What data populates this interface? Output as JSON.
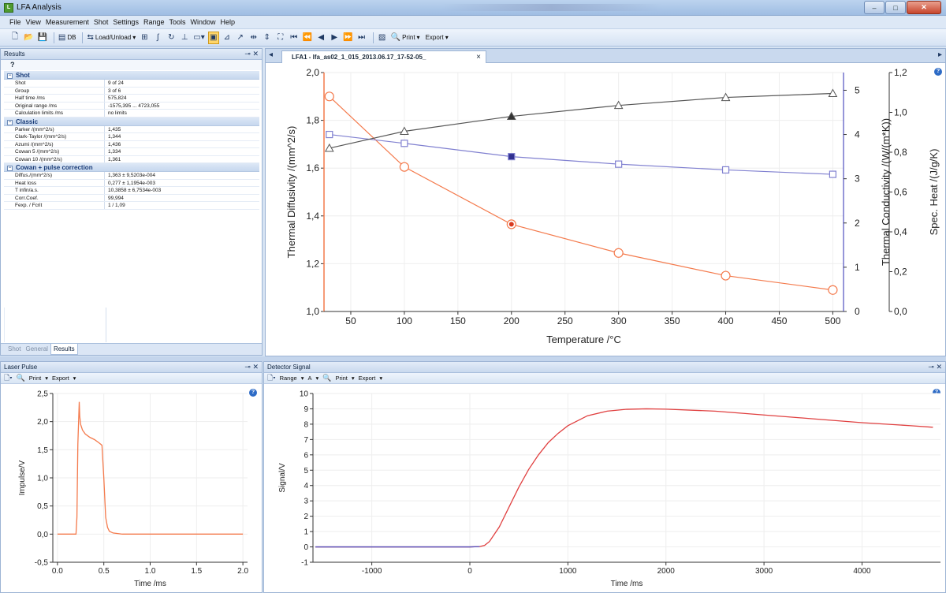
{
  "window": {
    "title": "LFA Analysis",
    "minimize": "–",
    "maximize": "□",
    "close": "✕"
  },
  "menu": [
    "File",
    "View",
    "Measurement",
    "Shot",
    "Settings",
    "Range",
    "Tools",
    "Window",
    "Help"
  ],
  "toolbar": {
    "db_label": "DB",
    "load_label": "Load/Unload",
    "print_label": "Print",
    "export_label": "Export"
  },
  "results_panel": {
    "title": "Results",
    "help_glyph": "?",
    "sections": [
      {
        "name": "Shot",
        "rows": [
          {
            "k": "Shot",
            "v": "9 of 24"
          },
          {
            "k": "Group",
            "v": "3 of 6"
          },
          {
            "k": "Half time /ms",
            "v": "575,824"
          },
          {
            "k": "Original range /ms",
            "v": "-1575,395 ... 4723,055"
          },
          {
            "k": "Calculation limits /ms",
            "v": "no limits"
          }
        ]
      },
      {
        "name": "Classic",
        "rows": [
          {
            "k": "Parker /(mm^2/s)",
            "v": "1,435"
          },
          {
            "k": "Clark-Taylor /(mm^2/s)",
            "v": "1,344"
          },
          {
            "k": "Azumi /(mm^2/s)",
            "v": "1,436"
          },
          {
            "k": "Cowan 5 /(mm^2/s)",
            "v": "1,334"
          },
          {
            "k": "Cowan 10 /(mm^2/s)",
            "v": "1,361"
          }
        ]
      },
      {
        "name": "Cowan + pulse correction",
        "rows": [
          {
            "k": "Diffus./(mm^2/s)",
            "v": "1,363 ± 9,5203e-004"
          },
          {
            "k": "Heat loss",
            "v": "0,277 ± 1,1954e-003"
          },
          {
            "k": "T infin/a.s.",
            "v": "10,3858 ± 6,7534e-003"
          },
          {
            "k": "Corr.Coef.",
            "v": "99,994"
          },
          {
            "k": "Fexp. / Fcrit",
            "v": "1 / 1,09"
          }
        ]
      }
    ],
    "tabs": [
      "Shot",
      "General",
      "Results"
    ],
    "active_tab": "Results"
  },
  "doc_tab": {
    "label": "LFA1 - lfa_as02_1_015_2013.06.17_17-52-05_",
    "close": "×"
  },
  "chart_data": [
    {
      "type": "line",
      "x": [
        30,
        100,
        200,
        300,
        400,
        500
      ],
      "xlabel": "Temperature /°C",
      "xlim": [
        25,
        510
      ],
      "xticks": [
        "50",
        "100",
        "150",
        "200",
        "250",
        "300",
        "350",
        "400",
        "450",
        "500"
      ],
      "axes": {
        "left": {
          "label": "Thermal Diffusivity /(mm^2/s)",
          "range": [
            1.0,
            2.0
          ],
          "ticks": [
            "1,0",
            "1,2",
            "1,4",
            "1,6",
            "1,8",
            "2,0"
          ]
        },
        "right1": {
          "label": "Thermal Conductivity /(W/(m*K))",
          "range": [
            0,
            5.4
          ],
          "ticks": [
            "0",
            "1",
            "2",
            "3",
            "4",
            "5"
          ]
        },
        "right2": {
          "label": "Spec. Heat /(J/g/K)",
          "range": [
            0,
            1.2
          ],
          "ticks": [
            "0,0",
            "0,2",
            "0,4",
            "0,6",
            "0,8",
            "1,0",
            "1,2"
          ]
        }
      },
      "series": [
        {
          "axis": "left",
          "marker": "circle",
          "color": "#f47a4c",
          "values": [
            1.9,
            1.605,
            1.365,
            1.245,
            1.15,
            1.09
          ],
          "highlight_index": 2
        },
        {
          "axis": "right1",
          "marker": "square",
          "color": "#8080d0",
          "values": [
            4.0,
            3.8,
            3.5,
            3.33,
            3.2,
            3.1
          ],
          "highlight_index": 2
        },
        {
          "axis": "right2",
          "marker": "triangle",
          "color": "#555555",
          "values": [
            0.82,
            0.905,
            0.98,
            1.035,
            1.075,
            1.095
          ],
          "highlight_index": 2
        }
      ]
    },
    {
      "type": "line",
      "title": "Laser Pulse",
      "xlabel": "Time /ms",
      "ylabel": "Impulse/V",
      "xlim": [
        -0.05,
        2.05
      ],
      "ylim": [
        -0.5,
        2.5
      ],
      "xticks": [
        "0.0",
        "0.5",
        "1.0",
        "1.5",
        "2.0"
      ],
      "yticks": [
        "-0,5",
        "0,0",
        "0,5",
        "1,0",
        "1,5",
        "2,0",
        "2,5"
      ],
      "series": [
        {
          "color": "#f47a4c",
          "x": [
            0,
            0.2,
            0.21,
            0.22,
            0.23,
            0.235,
            0.24,
            0.25,
            0.27,
            0.3,
            0.35,
            0.4,
            0.45,
            0.48,
            0.5,
            0.52,
            0.54,
            0.56,
            0.6,
            0.7,
            2.0
          ],
          "y": [
            0,
            0,
            0.3,
            1.6,
            2.1,
            2.35,
            2.1,
            1.95,
            1.85,
            1.78,
            1.72,
            1.68,
            1.62,
            1.58,
            1.0,
            0.3,
            0.12,
            0.05,
            0.02,
            0,
            0
          ]
        }
      ]
    },
    {
      "type": "line",
      "title": "Detector Signal",
      "xlabel": "Time /ms",
      "ylabel": "Signal/V",
      "xlim": [
        -1600,
        4800
      ],
      "ylim": [
        -1,
        10
      ],
      "xticks": [
        "-1000",
        "0",
        "1000",
        "2000",
        "3000",
        "4000"
      ],
      "yticks": [
        "-1",
        "0",
        "1",
        "2",
        "3",
        "4",
        "5",
        "6",
        "7",
        "8",
        "9",
        "10"
      ],
      "series": [
        {
          "color": "#e04040",
          "x": [
            -1575,
            -500,
            0,
            100,
            150,
            200,
            300,
            400,
            500,
            600,
            700,
            800,
            900,
            1000,
            1200,
            1400,
            1600,
            1800,
            2000,
            2500,
            3000,
            3500,
            4000,
            4500,
            4723
          ],
          "y": [
            0,
            0,
            0,
            0.02,
            0.1,
            0.35,
            1.3,
            2.6,
            3.9,
            5.05,
            6.0,
            6.8,
            7.4,
            7.9,
            8.55,
            8.85,
            8.97,
            9.0,
            8.98,
            8.85,
            8.6,
            8.35,
            8.1,
            7.9,
            7.8
          ]
        },
        {
          "color": "#5050c0",
          "x": [
            -1575,
            -500,
            0,
            100
          ],
          "y": [
            0,
            0,
            0,
            0.02
          ]
        }
      ]
    }
  ],
  "laser_panel": {
    "title": "Laser Pulse",
    "print_label": "Print",
    "export_label": "Export"
  },
  "detector_panel": {
    "title": "Detector Signal",
    "range_label": "Range",
    "a_label": "A",
    "print_label": "Print",
    "export_label": "Export"
  }
}
